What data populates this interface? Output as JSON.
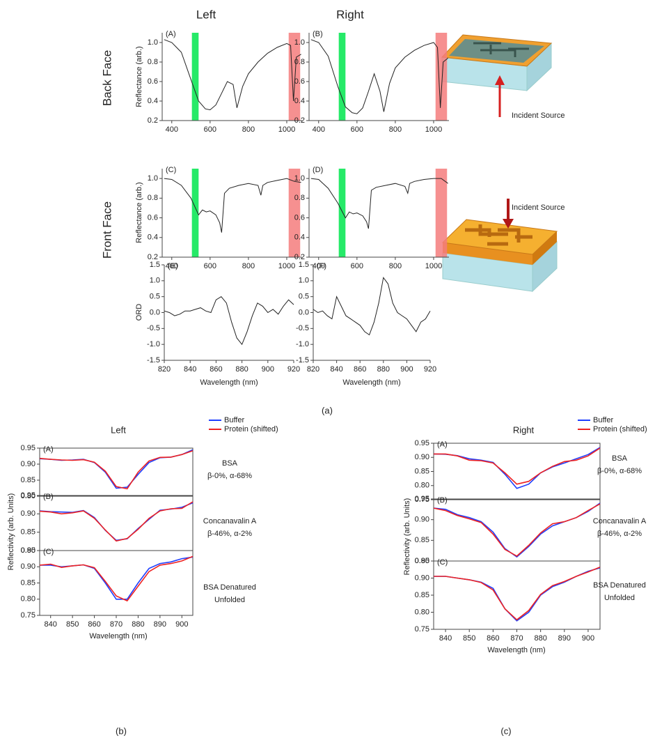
{
  "figure": {
    "columns": [
      "Left",
      "Right"
    ],
    "rows": [
      "Back Face",
      "Front Face"
    ],
    "incident_source": [
      "Incident Source",
      "Incident Source"
    ],
    "captions": [
      "(a)",
      "(b)",
      "(c)"
    ],
    "group_titles": [
      "Left",
      "Right"
    ]
  },
  "chart_data": [
    {
      "type": "line",
      "panel": "(A)",
      "ylabel": "Reflectance (arb.)",
      "xlim": [
        350,
        1080
      ],
      "xticks": [
        400,
        600,
        800,
        1000
      ],
      "ylim": [
        0.2,
        1.1
      ],
      "yticks": [
        0.2,
        0.4,
        0.6,
        0.8,
        {
          "value": 1,
          "label": "1.0"
        }
      ],
      "highlights": [
        {
          "range": [
            505,
            540
          ],
          "color": "#00e64d"
        },
        {
          "range": [
            1010,
            1070
          ],
          "color": "#f47c7c"
        }
      ],
      "x": [
        360,
        400,
        450,
        500,
        540,
        575,
        600,
        630,
        660,
        690,
        720,
        740,
        770,
        800,
        850,
        900,
        950,
        1000,
        1020,
        1035,
        1050,
        1075
      ],
      "series": [
        {
          "color": "#222222",
          "values": [
            1.03,
            1.0,
            0.9,
            0.62,
            0.4,
            0.32,
            0.31,
            0.36,
            0.48,
            0.6,
            0.57,
            0.33,
            0.55,
            0.68,
            0.8,
            0.89,
            0.95,
            0.99,
            0.97,
            0.4,
            0.85,
            0.88
          ]
        }
      ]
    },
    {
      "type": "line",
      "panel": "(B)",
      "xlim": [
        350,
        1080
      ],
      "xticks": [
        400,
        600,
        800,
        1000
      ],
      "ylim": [
        0.2,
        1.1
      ],
      "yticks": [
        0.2,
        0.4,
        0.6,
        0.8,
        {
          "value": 1,
          "label": "1.0"
        }
      ],
      "highlights": [
        {
          "range": [
            505,
            540
          ],
          "color": "#00e64d"
        },
        {
          "range": [
            1010,
            1070
          ],
          "color": "#f47c7c"
        }
      ],
      "x": [
        360,
        400,
        450,
        500,
        540,
        575,
        600,
        630,
        660,
        690,
        720,
        740,
        770,
        800,
        850,
        900,
        950,
        1000,
        1020,
        1035,
        1050,
        1075
      ],
      "series": [
        {
          "color": "#222222",
          "values": [
            1.03,
            1.0,
            0.86,
            0.55,
            0.34,
            0.28,
            0.27,
            0.33,
            0.5,
            0.68,
            0.5,
            0.29,
            0.58,
            0.74,
            0.85,
            0.92,
            0.97,
            1.0,
            0.95,
            0.33,
            0.8,
            0.84
          ]
        }
      ]
    },
    {
      "type": "line",
      "panel": "(C)",
      "ylabel": "Reflectance (arb.)",
      "xlim": [
        350,
        1080
      ],
      "xticks": [
        400,
        600,
        800,
        1000
      ],
      "ylim": [
        0.2,
        1.1
      ],
      "yticks": [
        0.2,
        0.4,
        0.6,
        0.8,
        {
          "value": 1,
          "label": "1.0"
        }
      ],
      "highlights": [
        {
          "range": [
            505,
            540
          ],
          "color": "#00e64d"
        },
        {
          "range": [
            1010,
            1070
          ],
          "color": "#f47c7c"
        }
      ],
      "x": [
        360,
        400,
        450,
        500,
        540,
        560,
        580,
        600,
        630,
        650,
        660,
        675,
        700,
        750,
        800,
        850,
        865,
        875,
        900,
        950,
        1000,
        1040,
        1075
      ],
      "series": [
        {
          "color": "#222222",
          "values": [
            1.0,
            0.99,
            0.93,
            0.8,
            0.63,
            0.68,
            0.66,
            0.67,
            0.63,
            0.55,
            0.45,
            0.85,
            0.9,
            0.93,
            0.95,
            0.93,
            0.83,
            0.93,
            0.96,
            0.98,
            1.0,
            0.97,
            0.96
          ]
        }
      ]
    },
    {
      "type": "line",
      "panel": "(D)",
      "xlim": [
        350,
        1080
      ],
      "xticks": [
        400,
        600,
        800,
        1000
      ],
      "ylim": [
        0.2,
        1.1
      ],
      "yticks": [
        0.2,
        0.4,
        0.6,
        0.8,
        {
          "value": 1,
          "label": "1.0"
        }
      ],
      "highlights": [
        {
          "range": [
            505,
            540
          ],
          "color": "#00e64d"
        },
        {
          "range": [
            1010,
            1070
          ],
          "color": "#f47c7c"
        }
      ],
      "x": [
        360,
        400,
        450,
        500,
        540,
        560,
        580,
        600,
        630,
        650,
        660,
        675,
        700,
        750,
        800,
        850,
        865,
        875,
        900,
        950,
        1000,
        1040,
        1075
      ],
      "series": [
        {
          "color": "#222222",
          "values": [
            1.0,
            0.99,
            0.9,
            0.75,
            0.6,
            0.66,
            0.64,
            0.65,
            0.62,
            0.56,
            0.49,
            0.88,
            0.91,
            0.93,
            0.95,
            0.92,
            0.85,
            0.95,
            0.97,
            0.99,
            1.0,
            1.0,
            0.95
          ]
        }
      ]
    },
    {
      "type": "line",
      "panel": "(E)",
      "ylabel": "ORD",
      "xlabel": "Wavelength (nm)",
      "xlim": [
        820,
        920
      ],
      "xticks": [
        820,
        840,
        860,
        880,
        900,
        920
      ],
      "ylim": [
        -1.5,
        1.5
      ],
      "yticks": [
        -1.5,
        {
          "value": -1,
          "label": "-1.0"
        },
        -0.5,
        {
          "value": 0,
          "label": "0.0"
        },
        0.5,
        {
          "value": 1,
          "label": "1.0"
        },
        1.5
      ],
      "x": [
        820,
        824,
        828,
        832,
        836,
        840,
        844,
        848,
        852,
        856,
        860,
        864,
        868,
        872,
        876,
        880,
        884,
        888,
        892,
        896,
        900,
        904,
        908,
        912,
        916,
        920
      ],
      "series": [
        {
          "color": "#222222",
          "values": [
            0.05,
            0.0,
            -0.1,
            -0.05,
            0.05,
            0.05,
            0.1,
            0.15,
            0.05,
            0.0,
            0.4,
            0.5,
            0.3,
            -0.3,
            -0.8,
            -1.0,
            -0.6,
            -0.1,
            0.3,
            0.2,
            0.0,
            0.1,
            -0.05,
            0.2,
            0.4,
            0.25
          ]
        }
      ]
    },
    {
      "type": "line",
      "panel": "(F)",
      "xlabel": "Wavelength (nm)",
      "xlim": [
        820,
        920
      ],
      "xticks": [
        820,
        840,
        860,
        880,
        900,
        920
      ],
      "ylim": [
        -1.5,
        1.5
      ],
      "yticks": [
        -1.5,
        {
          "value": -1,
          "label": "-1.0"
        },
        -0.5,
        {
          "value": 0,
          "label": "0.0"
        },
        0.5,
        {
          "value": 1,
          "label": "1.0"
        },
        1.5
      ],
      "x": [
        820,
        824,
        828,
        832,
        836,
        840,
        844,
        848,
        852,
        856,
        860,
        864,
        868,
        872,
        876,
        880,
        884,
        888,
        892,
        896,
        900,
        904,
        908,
        912,
        916,
        920
      ],
      "series": [
        {
          "color": "#222222",
          "values": [
            0.1,
            0.0,
            0.05,
            -0.1,
            -0.2,
            0.5,
            0.2,
            -0.1,
            -0.2,
            -0.3,
            -0.4,
            -0.6,
            -0.7,
            -0.3,
            0.3,
            1.1,
            0.9,
            0.3,
            0.0,
            -0.1,
            -0.2,
            -0.4,
            -0.6,
            -0.3,
            -0.2,
            0.05
          ]
        }
      ]
    },
    {
      "type": "line",
      "panel": "(A)",
      "annotation": [
        "BSA",
        "β-0%, α-68%"
      ],
      "xlim": [
        835,
        905
      ],
      "ylim": [
        0.8,
        0.95
      ],
      "yticks": [
        {
          "value": 0.8,
          "label": "0.80"
        },
        0.85,
        {
          "value": 0.9,
          "label": "0.90"
        },
        0.95
      ],
      "x": [
        835,
        840,
        845,
        850,
        855,
        860,
        865,
        870,
        875,
        880,
        885,
        890,
        895,
        900,
        905
      ],
      "series": [
        {
          "name": "Buffer",
          "color": "#1f3fff",
          "values": [
            0.917,
            0.915,
            0.912,
            0.913,
            0.915,
            0.905,
            0.875,
            0.825,
            0.828,
            0.868,
            0.905,
            0.92,
            0.922,
            0.93,
            0.945
          ]
        },
        {
          "name": "Protein (shifted)",
          "color": "#ee2222",
          "values": [
            0.918,
            0.915,
            0.913,
            0.912,
            0.914,
            0.906,
            0.878,
            0.83,
            0.823,
            0.875,
            0.91,
            0.921,
            0.922,
            0.93,
            0.942
          ]
        }
      ]
    },
    {
      "type": "line",
      "panel": "(B)",
      "ylabel": "Reflectivity (arb. Units)",
      "annotation": [
        "Concanavalin A",
        "β-46%, α-2%"
      ],
      "xlim": [
        835,
        905
      ],
      "ylim": [
        0.8,
        0.95
      ],
      "yticks": [
        {
          "value": 0.8,
          "label": "0.80"
        },
        0.85,
        {
          "value": 0.9,
          "label": "0.90"
        },
        0.95
      ],
      "x": [
        835,
        840,
        845,
        850,
        855,
        860,
        865,
        870,
        875,
        880,
        885,
        890,
        895,
        900,
        905
      ],
      "series": [
        {
          "color": "#1f3fff",
          "values": [
            0.908,
            0.906,
            0.905,
            0.904,
            0.909,
            0.89,
            0.855,
            0.828,
            0.832,
            0.86,
            0.885,
            0.91,
            0.913,
            0.918,
            0.93
          ]
        },
        {
          "color": "#ee2222",
          "values": [
            0.907,
            0.905,
            0.9,
            0.903,
            0.908,
            0.888,
            0.856,
            0.826,
            0.833,
            0.858,
            0.888,
            0.908,
            0.914,
            0.915,
            0.933
          ]
        }
      ]
    },
    {
      "type": "line",
      "panel": "(C)",
      "xlabel": "Wavelength (nm)",
      "annotation": [
        "BSA Denatured",
        "Unfolded"
      ],
      "xlim": [
        835,
        905
      ],
      "xticks": [
        840,
        850,
        860,
        870,
        880,
        890,
        900
      ],
      "ylim": [
        0.75,
        0.95
      ],
      "yticks": [
        0.75,
        {
          "value": 0.8,
          "label": "0.80"
        },
        0.85,
        {
          "value": 0.9,
          "label": "0.90"
        },
        0.95
      ],
      "x": [
        835,
        840,
        845,
        850,
        855,
        860,
        865,
        870,
        875,
        880,
        885,
        890,
        895,
        900,
        905
      ],
      "series": [
        {
          "color": "#1f3fff",
          "values": [
            0.905,
            0.905,
            0.9,
            0.903,
            0.906,
            0.895,
            0.85,
            0.8,
            0.8,
            0.85,
            0.895,
            0.91,
            0.915,
            0.925,
            0.93
          ]
        },
        {
          "color": "#ee2222",
          "values": [
            0.905,
            0.908,
            0.898,
            0.903,
            0.906,
            0.897,
            0.855,
            0.81,
            0.795,
            0.84,
            0.885,
            0.905,
            0.91,
            0.918,
            0.932
          ]
        }
      ]
    },
    {
      "type": "line",
      "panel": "(A)",
      "annotation": [
        "BSA",
        "β-0%, α-68%"
      ],
      "xlim": [
        835,
        905
      ],
      "ylim": [
        0.75,
        0.95
      ],
      "yticks": [
        0.75,
        {
          "value": 0.8,
          "label": "0.80"
        },
        0.85,
        {
          "value": 0.9,
          "label": "0.90"
        },
        0.95
      ],
      "x": [
        835,
        840,
        845,
        850,
        855,
        860,
        865,
        870,
        875,
        880,
        885,
        890,
        895,
        900,
        905
      ],
      "series": [
        {
          "name": "Buffer",
          "color": "#1f3fff",
          "values": [
            0.912,
            0.911,
            0.906,
            0.895,
            0.89,
            0.882,
            0.84,
            0.79,
            0.805,
            0.845,
            0.866,
            0.88,
            0.895,
            0.91,
            0.935
          ]
        },
        {
          "name": "Protein (shifted)",
          "color": "#ee2222",
          "values": [
            0.912,
            0.912,
            0.905,
            0.89,
            0.888,
            0.88,
            0.845,
            0.805,
            0.815,
            0.845,
            0.868,
            0.885,
            0.89,
            0.905,
            0.933
          ]
        }
      ]
    },
    {
      "type": "line",
      "panel": "(B)",
      "ylabel": "Reflectivity (arb. Units)",
      "annotation": [
        "Concanavalin A",
        "β-46%, α-2%"
      ],
      "xlim": [
        835,
        905
      ],
      "ylim": [
        0.8,
        0.95
      ],
      "yticks": [
        {
          "value": 0.8,
          "label": "0.80"
        },
        0.85,
        {
          "value": 0.9,
          "label": "0.90"
        },
        0.95
      ],
      "x": [
        835,
        840,
        845,
        850,
        855,
        860,
        865,
        870,
        875,
        880,
        885,
        890,
        895,
        900,
        905
      ],
      "series": [
        {
          "color": "#1f3fff",
          "values": [
            0.928,
            0.925,
            0.912,
            0.905,
            0.895,
            0.87,
            0.83,
            0.81,
            0.835,
            0.865,
            0.885,
            0.895,
            0.905,
            0.92,
            0.94
          ]
        },
        {
          "color": "#ee2222",
          "values": [
            0.928,
            0.922,
            0.91,
            0.902,
            0.893,
            0.865,
            0.828,
            0.812,
            0.838,
            0.868,
            0.89,
            0.895,
            0.905,
            0.922,
            0.938
          ]
        }
      ]
    },
    {
      "type": "line",
      "panel": "(C)",
      "xlabel": "Wavelength (nm)",
      "annotation": [
        "BSA Denatured",
        "Unfolded"
      ],
      "xlim": [
        835,
        905
      ],
      "xticks": [
        840,
        850,
        860,
        870,
        880,
        890,
        900
      ],
      "ylim": [
        0.75,
        0.95
      ],
      "yticks": [
        0.75,
        {
          "value": 0.8,
          "label": "0.80"
        },
        0.85,
        {
          "value": 0.9,
          "label": "0.90"
        },
        0.95
      ],
      "x": [
        835,
        840,
        845,
        850,
        855,
        860,
        865,
        870,
        875,
        880,
        885,
        890,
        895,
        900,
        905
      ],
      "series": [
        {
          "color": "#1f3fff",
          "values": [
            0.905,
            0.905,
            0.9,
            0.895,
            0.888,
            0.87,
            0.81,
            0.775,
            0.8,
            0.85,
            0.875,
            0.888,
            0.905,
            0.92,
            0.93
          ]
        },
        {
          "color": "#ee2222",
          "values": [
            0.905,
            0.905,
            0.9,
            0.895,
            0.887,
            0.865,
            0.81,
            0.778,
            0.805,
            0.852,
            0.878,
            0.89,
            0.905,
            0.918,
            0.932
          ]
        }
      ]
    }
  ]
}
